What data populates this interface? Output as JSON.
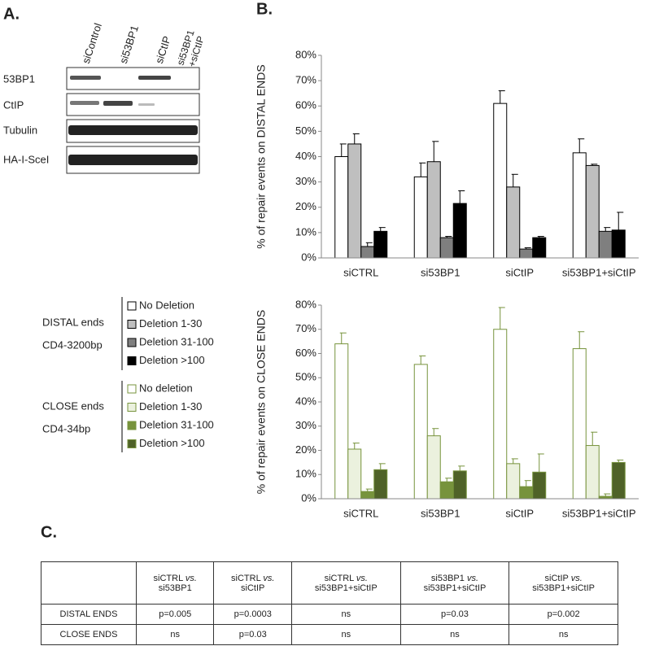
{
  "panel_a": {
    "label": "A.",
    "columns": [
      "siControl",
      "si53BP1",
      "siCtIP",
      "si53BP1",
      "+siCtIP"
    ],
    "rows": [
      "53BP1",
      "CtIP",
      "Tubulin",
      "HA-I-SceI"
    ]
  },
  "panel_b": {
    "label": "B."
  },
  "chart_data": [
    {
      "type": "bar",
      "y_label": "% of repair events on DISTAL ENDS",
      "categories": [
        "siCTRL",
        "si53BP1",
        "siCtIP",
        "si53BP1+siCtIP"
      ],
      "edge_color": "#000000",
      "ylim": [
        0,
        80
      ],
      "yticks": [
        {
          "value": 0,
          "label": "0%"
        },
        {
          "value": 10,
          "label": "10%"
        },
        {
          "value": 20,
          "label": "20%"
        },
        {
          "value": 30,
          "label": "30%"
        },
        {
          "value": 40,
          "label": "40%"
        },
        {
          "value": 50,
          "label": "50%"
        },
        {
          "value": 60,
          "label": "60%"
        },
        {
          "value": 70,
          "label": "70%"
        },
        {
          "value": 80,
          "label": "80%"
        }
      ],
      "series": [
        {
          "name": "No Deletion",
          "color": "#ffffff",
          "values": [
            40,
            32,
            61,
            41.5
          ],
          "errors": [
            5,
            5.5,
            5,
            5.5
          ]
        },
        {
          "name": "Deletion 1-30",
          "color": "#bfbfbf",
          "values": [
            45,
            38,
            28,
            36.5
          ],
          "errors": [
            4,
            8,
            5,
            0.5
          ]
        },
        {
          "name": "Deletion 31-100",
          "color": "#7f7f7f",
          "values": [
            4.5,
            8,
            3.5,
            10.5
          ],
          "errors": [
            1.5,
            0.5,
            0.5,
            1.5
          ]
        },
        {
          "name": "Deletion >100",
          "color": "#000000",
          "values": [
            10.5,
            21.5,
            8,
            11
          ],
          "errors": [
            1.5,
            5,
            0.5,
            7
          ]
        }
      ]
    },
    {
      "type": "bar",
      "y_label": "% of repair events on CLOSE ENDS",
      "categories": [
        "siCTRL",
        "si53BP1",
        "siCtIP",
        "si53BP1+siCtIP"
      ],
      "edge_color": "#77933c",
      "ylim": [
        0,
        80
      ],
      "yticks": [
        {
          "value": 0,
          "label": "0%"
        },
        {
          "value": 10,
          "label": "10%"
        },
        {
          "value": 20,
          "label": "20%"
        },
        {
          "value": 30,
          "label": "30%"
        },
        {
          "value": 40,
          "label": "40%"
        },
        {
          "value": 50,
          "label": "50%"
        },
        {
          "value": 60,
          "label": "60%"
        },
        {
          "value": 70,
          "label": "70%"
        },
        {
          "value": 80,
          "label": "80%"
        }
      ],
      "series": [
        {
          "name": "No deletion",
          "color": "#ffffff",
          "values": [
            64,
            55.5,
            70,
            62
          ],
          "errors": [
            4.5,
            3.5,
            9,
            7
          ]
        },
        {
          "name": "Deletion 1-30",
          "color": "#ebf1de",
          "values": [
            20.5,
            26,
            14.5,
            22
          ],
          "errors": [
            2.5,
            3,
            2,
            5.5
          ]
        },
        {
          "name": "Deletion 31-100",
          "color": "#77933c",
          "values": [
            3,
            7,
            5,
            1
          ],
          "errors": [
            1,
            1.5,
            2.5,
            1
          ]
        },
        {
          "name": "Deletion >100",
          "color": "#4f6228",
          "values": [
            12,
            11.5,
            11,
            15
          ],
          "errors": [
            2.5,
            2,
            7.5,
            1
          ]
        }
      ]
    }
  ],
  "legend_groups": [
    {
      "title": "DISTAL ends",
      "subtitle": "CD4-3200bp"
    },
    {
      "title": "CLOSE ends",
      "subtitle": "CD4-34bp"
    }
  ],
  "panel_c": {
    "label": "C.",
    "header": [
      {
        "left": "siCTRL",
        "vs": "vs.",
        "right": "si53BP1"
      },
      {
        "left": "siCTRL",
        "vs": "vs.",
        "right": "siCtIP"
      },
      {
        "left": "siCTRL",
        "vs": "vs.",
        "right": "si53BP1+siCtIP"
      },
      {
        "left": "si53BP1",
        "vs": "vs.",
        "right": "si53BP1+siCtIP"
      },
      {
        "left": "siCtIP",
        "vs": "vs.",
        "right": "si53BP1+siCtIP"
      }
    ],
    "rows": [
      [
        "DISTAL ENDS",
        "p=0.005",
        "p=0.0003",
        "ns",
        "p=0.03",
        "p=0.002"
      ],
      [
        "CLOSE ENDS",
        "ns",
        "p=0.03",
        "ns",
        "ns",
        "ns"
      ]
    ]
  }
}
